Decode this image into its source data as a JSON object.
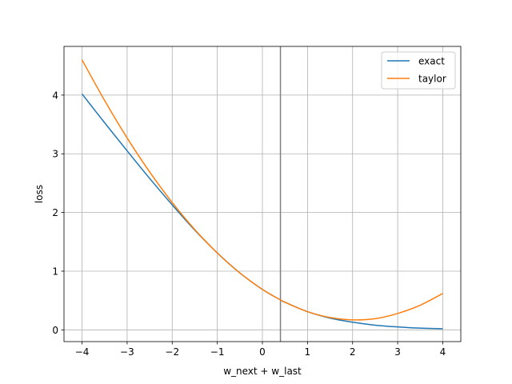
{
  "chart_data": {
    "type": "line",
    "title": "",
    "xlabel": "w_next + w_last",
    "ylabel": "loss",
    "xlim": [
      -4.4,
      4.4
    ],
    "ylim": [
      -0.2,
      4.83
    ],
    "xticks": [
      -4,
      -3,
      -2,
      -1,
      0,
      1,
      2,
      3,
      4
    ],
    "xtick_labels": [
      "−4",
      "−3",
      "−2",
      "−1",
      "0",
      "1",
      "2",
      "3",
      "4"
    ],
    "yticks": [
      0,
      1,
      2,
      3,
      4
    ],
    "ytick_labels": [
      "0",
      "1",
      "2",
      "3",
      "4"
    ],
    "grid": true,
    "legend_position": "top-right",
    "vline": {
      "x": 0.4,
      "color": "#808080"
    },
    "series": [
      {
        "name": "exact",
        "color": "#1f77b4",
        "x": [
          -4,
          -3.5,
          -3,
          -2.5,
          -2,
          -1.5,
          -1,
          -0.5,
          0,
          0.4,
          0.5,
          1,
          1.5,
          2,
          2.5,
          3,
          3.5,
          4
        ],
        "y": [
          4.02,
          3.53,
          3.05,
          2.58,
          2.13,
          1.7,
          1.31,
          0.97,
          0.69,
          0.51,
          0.47,
          0.31,
          0.2,
          0.13,
          0.08,
          0.05,
          0.03,
          0.02
        ]
      },
      {
        "name": "taylor",
        "color": "#ff7f0e",
        "x": [
          -4,
          -3.5,
          -3,
          -2.5,
          -2,
          -1.5,
          -1,
          -0.5,
          0,
          0.4,
          0.5,
          1,
          1.5,
          2,
          2.5,
          3,
          3.5,
          4
        ],
        "y": [
          4.6,
          3.91,
          3.27,
          2.69,
          2.17,
          1.71,
          1.31,
          0.97,
          0.69,
          0.51,
          0.47,
          0.31,
          0.21,
          0.17,
          0.19,
          0.28,
          0.42,
          0.62
        ]
      }
    ]
  }
}
